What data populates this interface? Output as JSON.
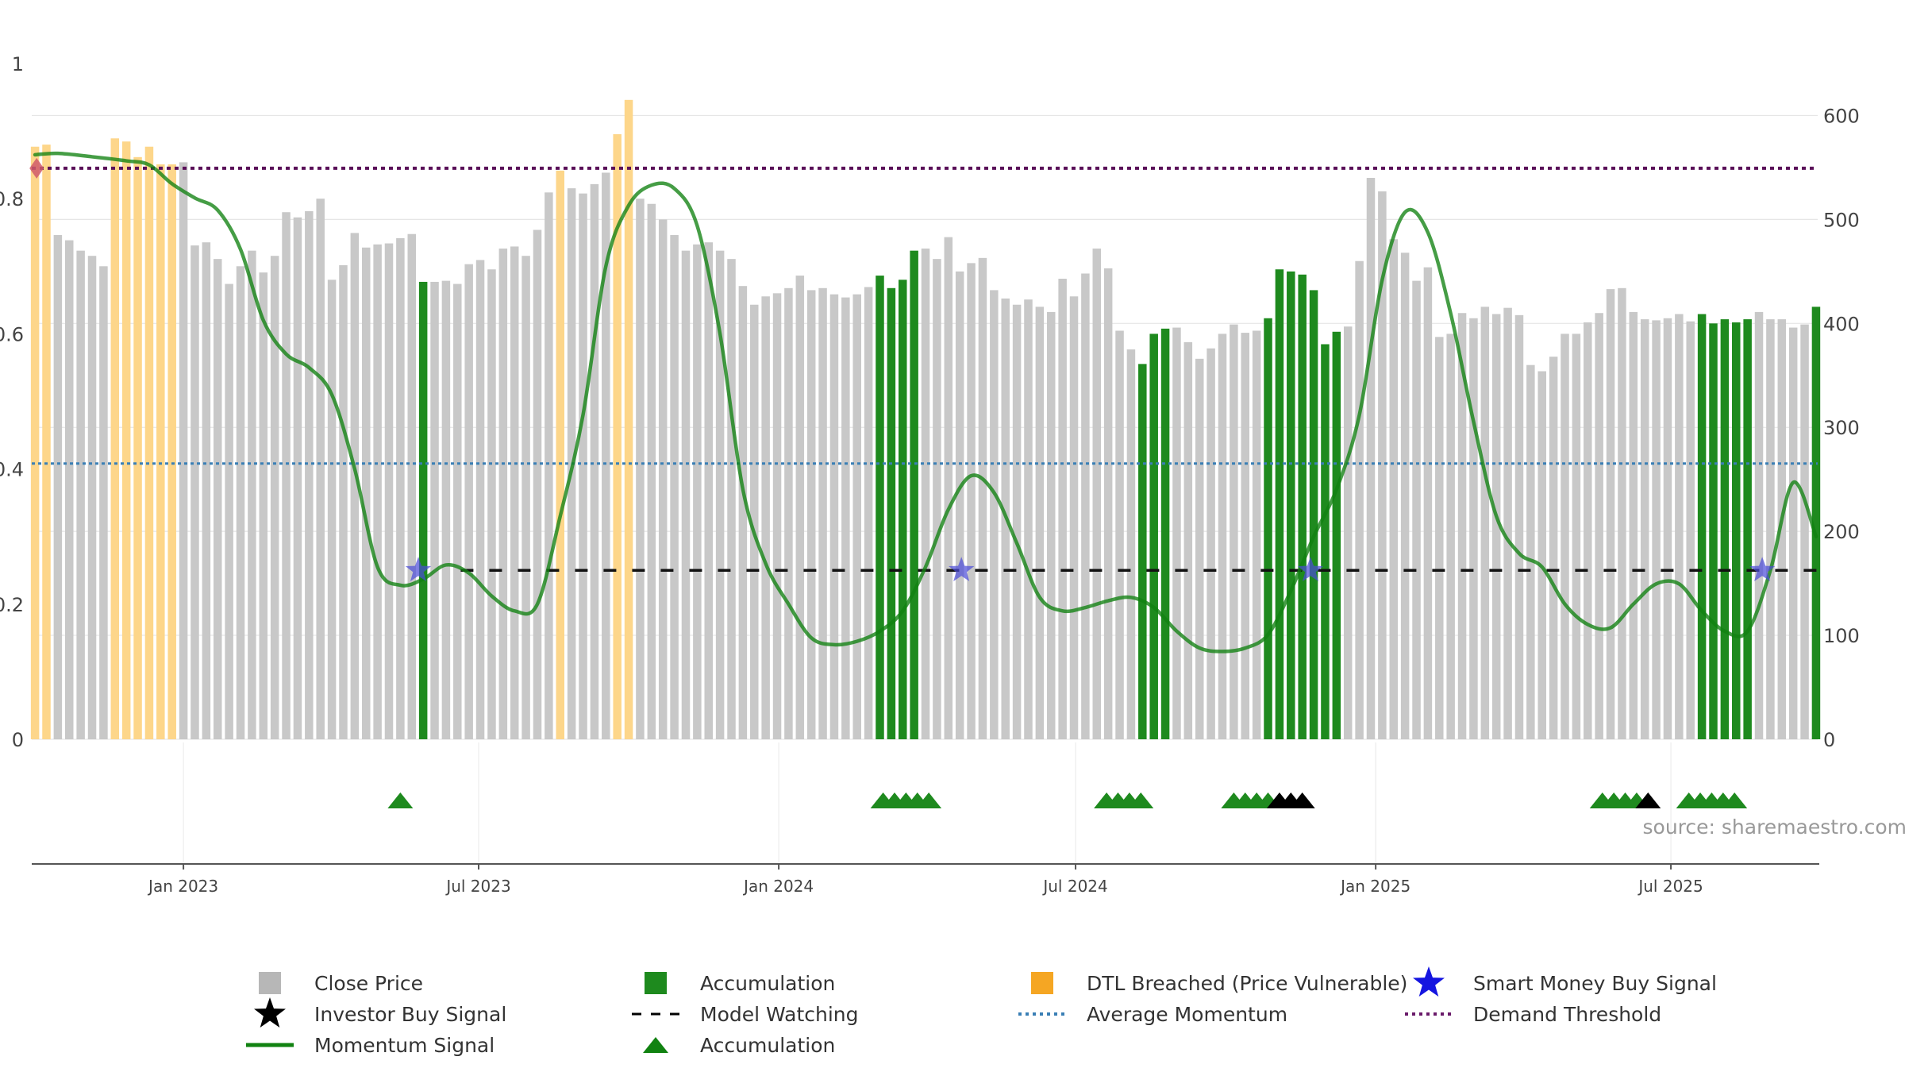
{
  "chart_data": {
    "type": "bar",
    "source": "source: sharemaestro.com",
    "left_axis": {
      "ylim": [
        0,
        1
      ],
      "ticks": [
        0,
        0.2,
        0.4,
        0.6,
        0.8,
        1
      ],
      "tick_labels": [
        "0",
        "0.2",
        "0.4",
        "0.6",
        "0.8",
        "1"
      ]
    },
    "right_axis": {
      "ylim": [
        0,
        650
      ],
      "ticks": [
        0,
        100,
        200,
        300,
        400,
        500,
        600
      ],
      "tick_labels": [
        "0",
        "100",
        "200",
        "300",
        "400",
        "500",
        "600"
      ]
    },
    "x_axis": {
      "range": [
        "2022-09-30",
        "2025-09-29"
      ],
      "ticks": [
        {
          "date": "2023-01-01",
          "label": "Jan 2023"
        },
        {
          "date": "2023-07-01",
          "label": "Jul 2023"
        },
        {
          "date": "2024-01-01",
          "label": "Jan 2024"
        },
        {
          "date": "2024-07-01",
          "label": "Jul 2024"
        },
        {
          "date": "2025-01-01",
          "label": "Jan 2025"
        },
        {
          "date": "2025-07-01",
          "label": "Jul 2025"
        }
      ]
    },
    "bar_dates": [
      "2022-10-02",
      "2022-10-09",
      "2022-10-16",
      "2022-10-23",
      "2022-10-30",
      "2022-11-06",
      "2022-11-13",
      "2022-11-20",
      "2022-11-27",
      "2022-12-04",
      "2022-12-11",
      "2022-12-18",
      "2022-12-25",
      "2023-01-01",
      "2023-01-08",
      "2023-01-15",
      "2023-01-22",
      "2023-01-29",
      "2023-02-05",
      "2023-02-12",
      "2023-02-19",
      "2023-02-26",
      "2023-03-05",
      "2023-03-12",
      "2023-03-19",
      "2023-03-26",
      "2023-04-02",
      "2023-04-09",
      "2023-04-16",
      "2023-04-23",
      "2023-04-30",
      "2023-05-07",
      "2023-05-14",
      "2023-05-21",
      "2023-05-28",
      "2023-06-04",
      "2023-06-11",
      "2023-06-18",
      "2023-06-25",
      "2023-07-02",
      "2023-07-09",
      "2023-07-16",
      "2023-07-23",
      "2023-07-30",
      "2023-08-06",
      "2023-08-13",
      "2023-08-20",
      "2023-08-27",
      "2023-09-03",
      "2023-09-10",
      "2023-09-17",
      "2023-09-24",
      "2023-10-01",
      "2023-10-08",
      "2023-10-15",
      "2023-10-22",
      "2023-10-29",
      "2023-11-05",
      "2023-11-12",
      "2023-11-19",
      "2023-11-26",
      "2023-12-03",
      "2023-12-10",
      "2023-12-17",
      "2023-12-24",
      "2023-12-31",
      "2024-01-07",
      "2024-01-14",
      "2024-01-21",
      "2024-01-28",
      "2024-02-04",
      "2024-02-11",
      "2024-02-18",
      "2024-02-25",
      "2024-03-03",
      "2024-03-10",
      "2024-03-17",
      "2024-03-24",
      "2024-03-31",
      "2024-04-07",
      "2024-04-14",
      "2024-04-21",
      "2024-04-28",
      "2024-05-05",
      "2024-05-12",
      "2024-05-19",
      "2024-05-26",
      "2024-06-02",
      "2024-06-09",
      "2024-06-16",
      "2024-06-23",
      "2024-06-30",
      "2024-07-07",
      "2024-07-14",
      "2024-07-21",
      "2024-07-28",
      "2024-08-04",
      "2024-08-11",
      "2024-08-18",
      "2024-08-25",
      "2024-09-01",
      "2024-09-08",
      "2024-09-15",
      "2024-09-22",
      "2024-09-29",
      "2024-10-06",
      "2024-10-13",
      "2024-10-20",
      "2024-10-27",
      "2024-11-03",
      "2024-11-10",
      "2024-11-17",
      "2024-11-24",
      "2024-12-01",
      "2024-12-08",
      "2024-12-15",
      "2024-12-22",
      "2024-12-29",
      "2025-01-05",
      "2025-01-12",
      "2025-01-19",
      "2025-01-26",
      "2025-02-02",
      "2025-02-09",
      "2025-02-16",
      "2025-02-23",
      "2025-03-02",
      "2025-03-09",
      "2025-03-16",
      "2025-03-23",
      "2025-03-30",
      "2025-04-06",
      "2025-04-13",
      "2025-04-20",
      "2025-04-27",
      "2025-05-04",
      "2025-05-11",
      "2025-05-18",
      "2025-05-25",
      "2025-06-01",
      "2025-06-08",
      "2025-06-15",
      "2025-06-22",
      "2025-06-29",
      "2025-07-06",
      "2025-07-13",
      "2025-07-20",
      "2025-07-27",
      "2025-08-03",
      "2025-08-10",
      "2025-08-17",
      "2025-08-24",
      "2025-08-31",
      "2025-09-07",
      "2025-09-14",
      "2025-09-21",
      "2025-09-28"
    ],
    "bar_values": [
      570,
      572,
      485,
      480,
      470,
      465,
      455,
      578,
      575,
      560,
      570,
      553,
      553,
      555,
      475,
      478,
      462,
      438,
      455,
      470,
      449,
      465,
      507,
      502,
      508,
      520,
      442,
      456,
      487,
      473,
      476,
      477,
      482,
      486,
      440,
      440,
      441,
      438,
      457,
      461,
      452,
      472,
      474,
      465,
      490,
      526,
      547,
      530,
      525,
      534,
      545,
      582,
      615,
      520,
      515,
      500,
      485,
      470,
      476,
      478,
      470,
      462,
      436,
      418,
      426,
      429,
      434,
      446,
      432,
      434,
      428,
      425,
      428,
      435,
      446,
      434,
      442,
      470,
      472,
      462,
      483,
      450,
      458,
      463,
      432,
      424,
      418,
      423,
      416,
      411,
      443,
      426,
      448,
      472,
      453,
      393,
      375,
      361,
      390,
      395,
      396,
      382,
      366,
      376,
      390,
      399,
      391,
      393,
      405,
      452,
      450,
      447,
      432,
      380,
      392,
      397,
      460,
      540,
      527,
      481,
      468,
      441,
      454,
      387,
      390,
      410,
      405,
      416,
      409,
      415,
      408,
      360,
      354,
      368,
      390,
      390,
      401,
      410,
      433,
      434,
      411,
      404,
      403,
      405,
      409,
      402,
      409,
      400,
      404,
      401,
      404,
      411,
      404,
      404,
      396,
      399,
      416
    ],
    "bar_status": [
      "d",
      "d",
      "n",
      "n",
      "n",
      "n",
      "n",
      "d",
      "d",
      "d",
      "d",
      "d",
      "d",
      "n",
      "n",
      "n",
      "n",
      "n",
      "n",
      "n",
      "n",
      "n",
      "n",
      "n",
      "n",
      "n",
      "n",
      "n",
      "n",
      "n",
      "n",
      "n",
      "n",
      "n",
      "a",
      "n",
      "n",
      "n",
      "n",
      "n",
      "n",
      "n",
      "n",
      "n",
      "n",
      "n",
      "d",
      "n",
      "n",
      "n",
      "n",
      "d",
      "d",
      "n",
      "n",
      "n",
      "n",
      "n",
      "n",
      "n",
      "n",
      "n",
      "n",
      "n",
      "n",
      "n",
      "n",
      "n",
      "n",
      "n",
      "n",
      "n",
      "n",
      "n",
      "a",
      "a",
      "a",
      "a",
      "n",
      "n",
      "n",
      "n",
      "n",
      "n",
      "n",
      "n",
      "n",
      "n",
      "n",
      "n",
      "n",
      "n",
      "n",
      "n",
      "n",
      "n",
      "n",
      "a",
      "a",
      "a",
      "n",
      "n",
      "n",
      "n",
      "n",
      "n",
      "n",
      "n",
      "a",
      "a",
      "a",
      "a",
      "a",
      "a",
      "a",
      "n",
      "n",
      "n",
      "n",
      "n",
      "n",
      "n",
      "n",
      "n",
      "n",
      "n",
      "n",
      "n",
      "n",
      "n",
      "n",
      "n",
      "n",
      "n",
      "n",
      "n",
      "n",
      "n",
      "n",
      "n",
      "n",
      "n",
      "n",
      "n",
      "n",
      "n",
      "a",
      "a",
      "a",
      "a",
      "a",
      "n",
      "n",
      "n",
      "n",
      "n",
      "a",
      "a",
      "a",
      "a",
      "n",
      "n"
    ],
    "momentum_dates": [
      "2022-10-02",
      "2022-10-16",
      "2022-11-06",
      "2022-11-27",
      "2022-12-11",
      "2022-12-25",
      "2023-01-08",
      "2023-01-22",
      "2023-02-05",
      "2023-02-19",
      "2023-03-05",
      "2023-03-19",
      "2023-04-02",
      "2023-04-16",
      "2023-04-30",
      "2023-05-14",
      "2023-05-28",
      "2023-06-11",
      "2023-06-25",
      "2023-07-09",
      "2023-07-23",
      "2023-08-06",
      "2023-08-20",
      "2023-09-03",
      "2023-09-17",
      "2023-10-01",
      "2023-10-15",
      "2023-10-29",
      "2023-11-12",
      "2023-11-26",
      "2023-12-10",
      "2023-12-24",
      "2024-01-07",
      "2024-01-21",
      "2024-02-04",
      "2024-02-18",
      "2024-03-03",
      "2024-03-17",
      "2024-03-31",
      "2024-04-14",
      "2024-04-28",
      "2024-05-12",
      "2024-05-26",
      "2024-06-09",
      "2024-06-23",
      "2024-07-07",
      "2024-07-21",
      "2024-08-04",
      "2024-08-18",
      "2024-09-01",
      "2024-09-15",
      "2024-09-29",
      "2024-10-13",
      "2024-10-27",
      "2024-11-10",
      "2024-11-24",
      "2024-12-08",
      "2024-12-22",
      "2025-01-05",
      "2025-01-19",
      "2025-02-02",
      "2025-02-16",
      "2025-03-02",
      "2025-03-16",
      "2025-03-30",
      "2025-04-13",
      "2025-04-27",
      "2025-05-11",
      "2025-05-25",
      "2025-06-08",
      "2025-06-22",
      "2025-07-06",
      "2025-07-20",
      "2025-08-03",
      "2025-08-17",
      "2025-08-31",
      "2025-09-14",
      "2025-09-28"
    ],
    "momentum_values": [
      0.865,
      0.867,
      0.862,
      0.856,
      0.85,
      0.822,
      0.801,
      0.783,
      0.725,
      0.62,
      0.57,
      0.55,
      0.51,
      0.4,
      0.255,
      0.228,
      0.237,
      0.258,
      0.246,
      0.212,
      0.19,
      0.2,
      0.33,
      0.48,
      0.7,
      0.79,
      0.82,
      0.815,
      0.76,
      0.6,
      0.37,
      0.26,
      0.2,
      0.15,
      0.14,
      0.145,
      0.16,
      0.19,
      0.255,
      0.34,
      0.39,
      0.365,
      0.29,
      0.21,
      0.19,
      0.195,
      0.205,
      0.21,
      0.195,
      0.16,
      0.135,
      0.13,
      0.135,
      0.155,
      0.22,
      0.3,
      0.37,
      0.48,
      0.68,
      0.78,
      0.75,
      0.63,
      0.47,
      0.33,
      0.275,
      0.255,
      0.2,
      0.17,
      0.165,
      0.2,
      0.23,
      0.23,
      0.19,
      0.16,
      0.16,
      0.25,
      0.38,
      0.3
    ],
    "average_momentum": 0.408,
    "demand_threshold": 0.845,
    "model_watching": {
      "value": 0.25,
      "start": "2023-06-20"
    },
    "smart_money_signals": [
      {
        "date": "2023-05-25",
        "value": 0.25
      },
      {
        "date": "2024-04-22",
        "value": 0.25
      },
      {
        "date": "2024-11-22",
        "value": 0.25
      },
      {
        "date": "2025-08-26",
        "value": 0.25
      }
    ],
    "start_marker": {
      "date": "2022-10-03",
      "value": 0.845
    },
    "accumulation_markers": [
      "2023-05-14",
      "2024-03-05",
      "2024-03-12",
      "2024-03-19",
      "2024-03-26",
      "2024-04-02",
      "2024-07-20",
      "2024-07-27",
      "2024-08-03",
      "2024-08-10",
      "2024-10-06",
      "2024-10-13",
      "2024-10-20",
      "2024-10-27",
      "2025-05-20",
      "2025-05-27",
      "2025-06-03",
      "2025-06-10",
      "2025-07-12",
      "2025-07-19",
      "2025-07-26",
      "2025-08-02",
      "2025-08-09"
    ],
    "investor_markers": [
      "2024-11-03",
      "2024-11-10",
      "2024-11-17",
      "2025-06-17"
    ],
    "legend": [
      {
        "key": "close",
        "label": "Close Price",
        "color": "#b7b7b7"
      },
      {
        "key": "accumulation_bar",
        "label": "Accumulation",
        "color": "#1e8a1e"
      },
      {
        "key": "dtl",
        "label": "DTL Breached (Price Vulnerable)",
        "color": "#f5a623"
      },
      {
        "key": "smart_money",
        "label": "Smart Money Buy Signal",
        "color": "#1515e0"
      },
      {
        "key": "investor",
        "label": "Investor Buy Signal",
        "color": "#000000"
      },
      {
        "key": "model_watching",
        "label": "Model Watching",
        "color": "#000000"
      },
      {
        "key": "avg_momentum",
        "label": "Average Momentum",
        "color": "#3a7fb5"
      },
      {
        "key": "demand_threshold",
        "label": "Demand Threshold",
        "color": "#6a1b6a"
      },
      {
        "key": "momentum",
        "label": "Momentum Signal",
        "color": "#118211"
      },
      {
        "key": "accumulation_marker",
        "label": "Accumulation",
        "color": "#118211"
      }
    ],
    "colors": {
      "close": "#c8c8c8",
      "accumulation": "#1e8a1e",
      "dtl": "#fdd68a",
      "momentum": "#118211",
      "avg_momentum": "#3a7fb5",
      "demand_threshold": "#5a1059",
      "smart_money": "#4a4ad8",
      "start_marker": "#d05a6a",
      "grid": "#e6e6e6"
    }
  }
}
